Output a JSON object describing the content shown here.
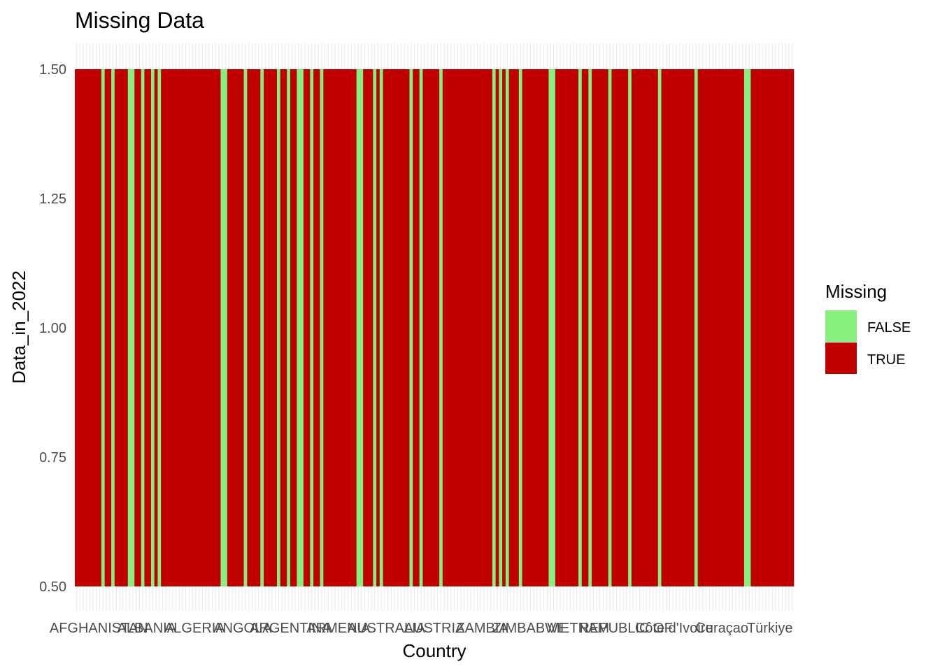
{
  "chart_data": {
    "type": "heatmap",
    "title": "Missing Data",
    "xlabel": "Country",
    "ylabel": "Data_in_2022",
    "y_ticks": [
      "0.50",
      "0.75",
      "1.00",
      "1.25",
      "1.50"
    ],
    "ylim": [
      0.5,
      1.5
    ],
    "grid": true,
    "legend": {
      "title": "Missing",
      "position": "right",
      "entries": [
        {
          "label": "FALSE",
          "color": "#86ef7d"
        },
        {
          "label": "TRUE",
          "color": "#c00000"
        }
      ]
    },
    "category_count": 205,
    "missing_values": [
      true,
      true,
      true,
      true,
      true,
      true,
      true,
      true,
      false,
      true,
      true,
      false,
      true,
      true,
      true,
      true,
      false,
      false,
      true,
      true,
      false,
      true,
      true,
      false,
      true,
      false,
      true,
      true,
      true,
      true,
      true,
      true,
      true,
      true,
      true,
      true,
      true,
      true,
      true,
      true,
      true,
      true,
      true,
      true,
      false,
      false,
      true,
      true,
      true,
      true,
      true,
      false,
      true,
      true,
      true,
      true,
      false,
      true,
      true,
      true,
      true,
      false,
      true,
      true,
      false,
      true,
      true,
      false,
      false,
      true,
      true,
      false,
      true,
      true,
      false,
      true,
      true,
      true,
      true,
      true,
      true,
      true,
      true,
      true,
      true,
      false,
      false,
      true,
      true,
      true,
      false,
      true,
      false,
      true,
      true,
      true,
      true,
      true,
      true,
      true,
      true,
      false,
      true,
      true,
      false,
      true,
      true,
      true,
      true,
      true,
      false,
      true,
      true,
      true,
      true,
      true,
      true,
      true,
      true,
      true,
      true,
      true,
      true,
      true,
      true,
      true,
      false,
      true,
      false,
      true,
      false,
      true,
      true,
      true,
      false,
      true,
      true,
      true,
      true,
      true,
      true,
      true,
      true,
      false,
      false,
      true,
      true,
      true,
      true,
      true,
      true,
      true,
      false,
      true,
      true,
      false,
      true,
      true,
      true,
      true,
      true,
      false,
      true,
      true,
      true,
      true,
      true,
      false,
      true,
      true,
      true,
      true,
      true,
      true,
      true,
      true,
      false,
      true,
      true,
      true,
      true,
      true,
      true,
      true,
      true,
      true,
      true,
      false,
      true,
      true,
      true,
      true,
      true,
      true,
      true,
      true,
      true,
      true,
      true,
      true,
      true,
      true,
      false,
      false,
      true,
      true,
      true,
      true,
      true,
      true,
      true,
      true,
      true,
      true,
      true,
      true,
      true
    ],
    "x_tick_labels_partial": [
      "AFGHANISTAN",
      "ALBANIA",
      "ALGERIA",
      "ANGOLA",
      "ARGENTINA",
      "ARMENIA",
      "AUSTRALIA",
      "AUSTRIA",
      "ZAMBIA",
      "ZIMBABWE",
      "VIETNAM",
      "REPUBLIC OF",
      "Côte d'Ivoire",
      "Curaçao",
      "Türkiye"
    ]
  }
}
